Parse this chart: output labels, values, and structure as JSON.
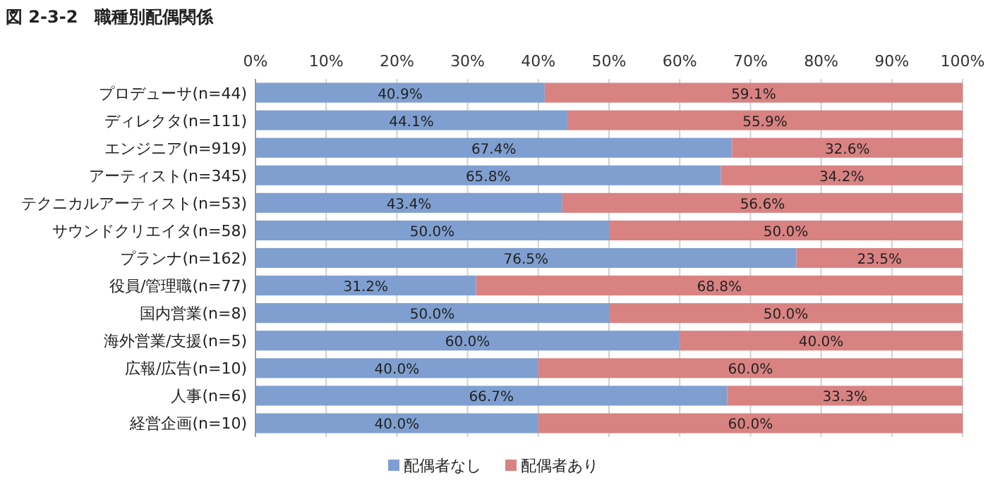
{
  "chart_data": {
    "type": "bar",
    "title": "図 2-3-2　職種別配偶関係",
    "orientation": "horizontal",
    "stacked": true,
    "categories": [
      "プロデューサ(n=44)",
      "ディレクタ(n=111)",
      "エンジニア(n=919)",
      "アーティスト(n=345)",
      "テクニカルアーティスト(n=53)",
      "サウンドクリエイタ(n=58)",
      "プランナ(n=162)",
      "役員/管理職(n=77)",
      "国内営業(n=8)",
      "海外営業/支援(n=5)",
      "広報/広告(n=10)",
      "人事(n=6)",
      "経営企画(n=10)"
    ],
    "series": [
      {
        "name": "配偶者なし",
        "color": "#7f9fd0",
        "values": [
          40.9,
          44.1,
          67.4,
          65.8,
          43.4,
          50.0,
          76.5,
          31.2,
          50.0,
          60.0,
          40.0,
          66.7,
          40.0
        ],
        "value_labels": [
          "40.9%",
          "44.1%",
          "67.4%",
          "65.8%",
          "43.4%",
          "50.0%",
          "76.5%",
          "31.2%",
          "50.0%",
          "60.0%",
          "40.0%",
          "66.7%",
          "40.0%"
        ]
      },
      {
        "name": "配偶者あり",
        "color": "#d98282",
        "values": [
          59.1,
          55.9,
          32.6,
          34.2,
          56.6,
          50.0,
          23.5,
          68.8,
          50.0,
          40.0,
          60.0,
          33.3,
          60.0
        ],
        "value_labels": [
          "59.1%",
          "55.9%",
          "32.6%",
          "34.2%",
          "56.6%",
          "50.0%",
          "23.5%",
          "68.8%",
          "50.0%",
          "40.0%",
          "60.0%",
          "33.3%",
          "60.0%"
        ]
      }
    ],
    "xlim": [
      0,
      100
    ],
    "xticks": [
      {
        "value": 0,
        "label": "0%"
      },
      {
        "value": 10,
        "label": "10%"
      },
      {
        "value": 20,
        "label": "20%"
      },
      {
        "value": 30,
        "label": "30%"
      },
      {
        "value": 40,
        "label": "40%"
      },
      {
        "value": 50,
        "label": "50%"
      },
      {
        "value": 60,
        "label": "60%"
      },
      {
        "value": 70,
        "label": "70%"
      },
      {
        "value": 80,
        "label": "80%"
      },
      {
        "value": 90,
        "label": "90%"
      },
      {
        "value": 100,
        "label": "100%"
      }
    ],
    "grid": "x",
    "legend": "bottom"
  }
}
